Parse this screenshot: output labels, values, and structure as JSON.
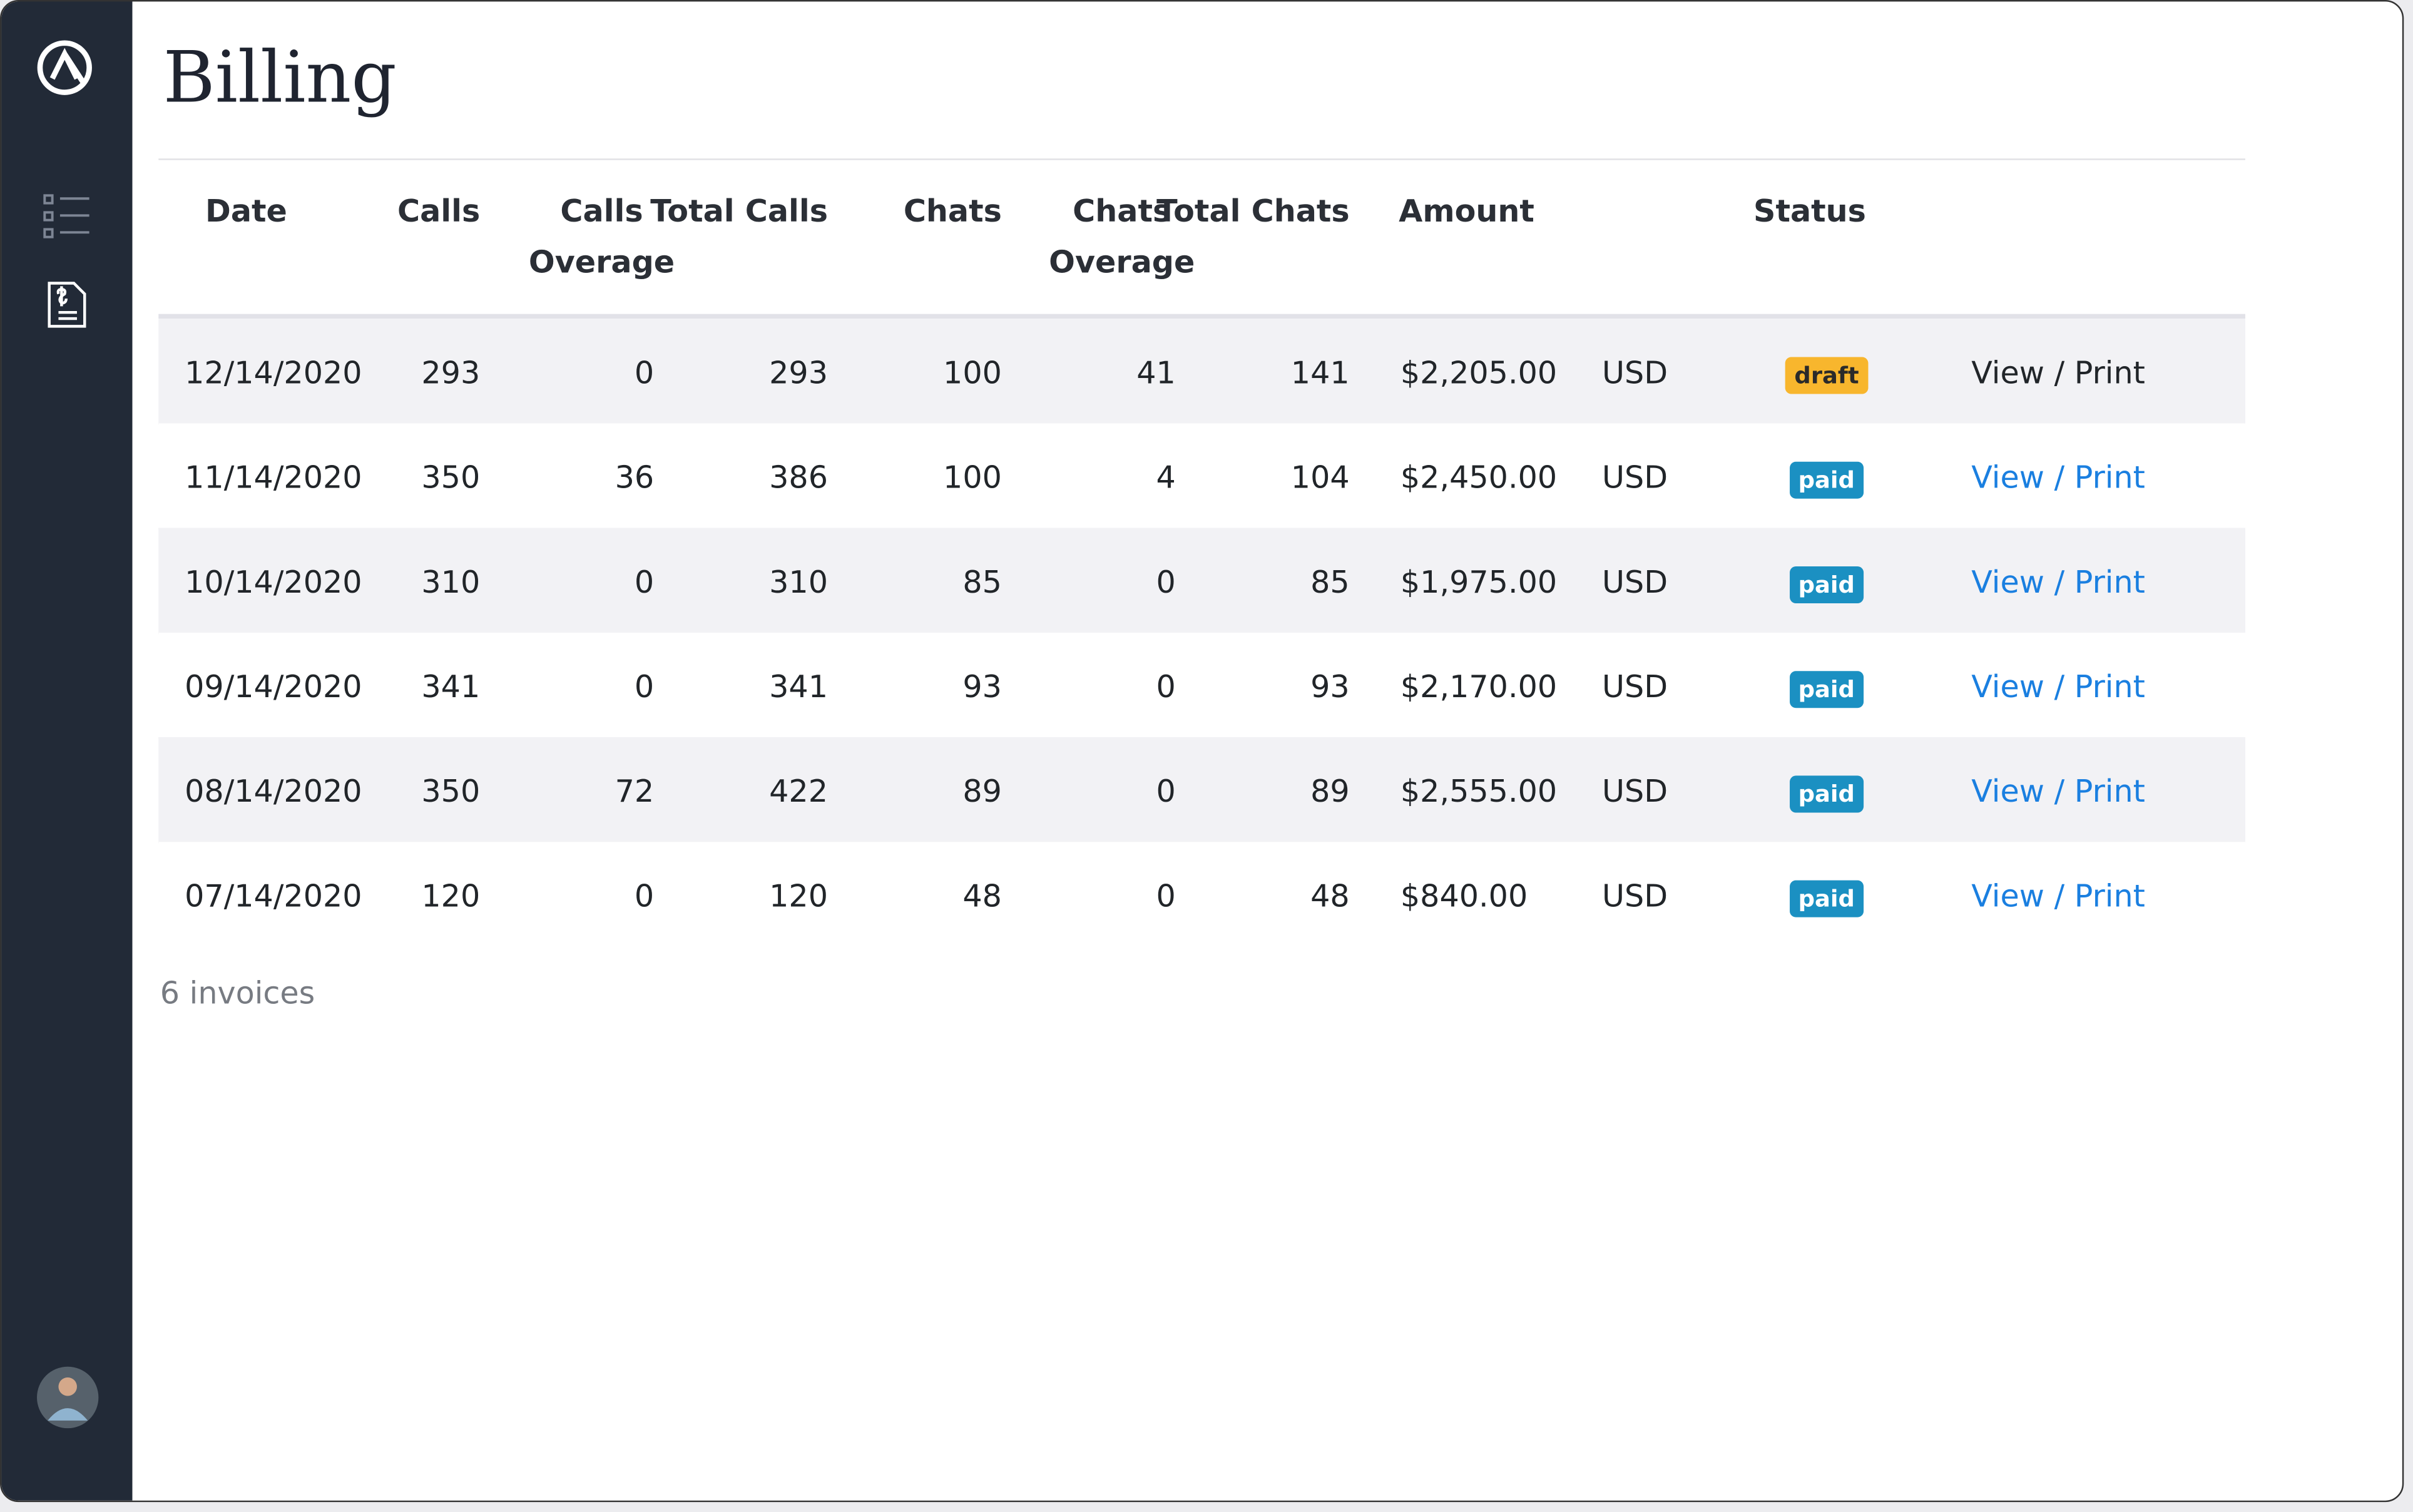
{
  "header": {
    "title": "Billing"
  },
  "table": {
    "headers": [
      "Date",
      "Calls",
      "Calls Overage",
      "Total Calls",
      "Chats",
      "Chats Overage",
      "Total Chats",
      "Amount",
      "Status"
    ],
    "rows": [
      [
        "12/14/2020",
        "293",
        "0",
        "293",
        "100",
        "41",
        "141",
        "$2,205.00",
        "USD",
        "draft",
        "View / Print"
      ],
      [
        "11/14/2020",
        "350",
        "36",
        "386",
        "100",
        "4",
        "104",
        "$2,450.00",
        "USD",
        "paid",
        "View / Print"
      ],
      [
        "10/14/2020",
        "310",
        "0",
        "310",
        "85",
        "0",
        "85",
        "$1,975.00",
        "USD",
        "paid",
        "View / Print"
      ],
      [
        "09/14/2020",
        "341",
        "0",
        "341",
        "93",
        "0",
        "93",
        "$2,170.00",
        "USD",
        "paid",
        "View / Print"
      ],
      [
        "08/14/2020",
        "350",
        "72",
        "422",
        "89",
        "0",
        "89",
        "$2,555.00",
        "USD",
        "paid",
        "View / Print"
      ],
      [
        "07/14/2020",
        "120",
        "0",
        "120",
        "48",
        "0",
        "48",
        "$840.00",
        "USD",
        "paid",
        "View / Print"
      ]
    ]
  },
  "footer": {
    "count": "6 invoices"
  }
}
